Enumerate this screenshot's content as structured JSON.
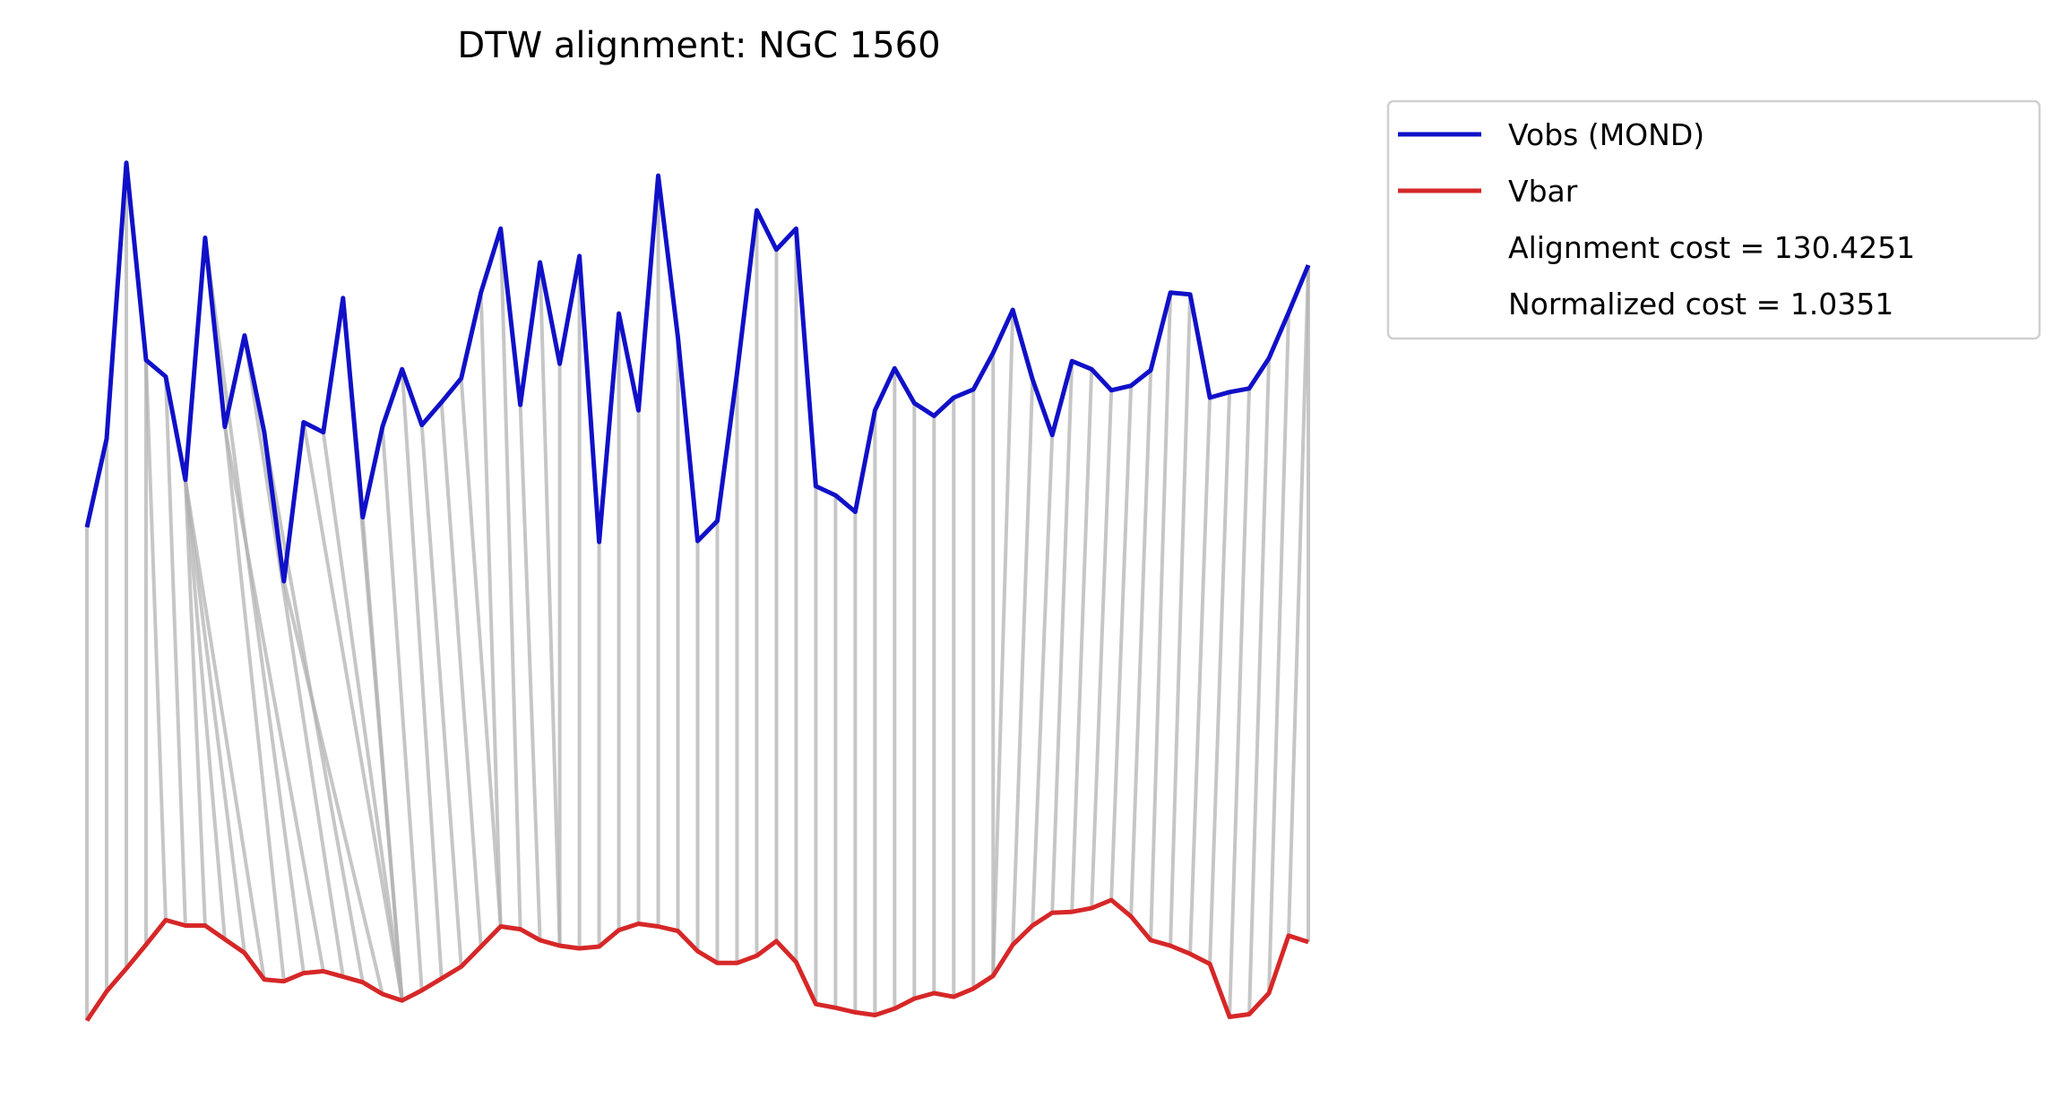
{
  "chart_data": {
    "type": "line",
    "title": "DTW alignment: NGC 1560",
    "xlabel": "",
    "ylabel": "",
    "axes_visible": false,
    "grid": false,
    "legend_position": "upper-right-outside",
    "x": [
      0,
      1,
      2,
      3,
      4,
      5,
      6,
      7,
      8,
      9,
      10,
      11,
      12,
      13,
      14,
      15,
      16,
      17,
      18,
      19,
      20,
      21,
      22,
      23,
      24,
      25,
      26,
      27,
      28,
      29,
      30,
      31,
      32,
      33,
      34,
      35,
      36,
      37,
      38,
      39,
      40,
      41,
      42,
      43,
      44,
      45,
      46,
      47,
      48,
      49,
      50,
      51,
      52,
      53,
      54,
      55,
      56,
      57,
      58,
      59,
      60,
      61,
      62
    ],
    "ylim": [
      0,
      1
    ],
    "series": [
      {
        "name": "Vobs (MOND)",
        "color": "#1010c8",
        "values": [
          0.56,
          0.657,
          0.959,
          0.743,
          0.725,
          0.612,
          0.877,
          0.67,
          0.77,
          0.664,
          0.501,
          0.675,
          0.664,
          0.811,
          0.571,
          0.67,
          0.733,
          0.672,
          0.697,
          0.723,
          0.817,
          0.887,
          0.694,
          0.85,
          0.739,
          0.857,
          0.544,
          0.794,
          0.688,
          0.945,
          0.768,
          0.545,
          0.567,
          0.729,
          0.907,
          0.864,
          0.887,
          0.605,
          0.595,
          0.577,
          0.688,
          0.734,
          0.696,
          0.682,
          0.702,
          0.711,
          0.751,
          0.798,
          0.722,
          0.661,
          0.742,
          0.733,
          0.71,
          0.715,
          0.732,
          0.817,
          0.815,
          0.702,
          0.708,
          0.712,
          0.745,
          0.795,
          0.847
        ]
      },
      {
        "name": "Vbar",
        "color": "#d62728",
        "values": [
          0.02,
          0.052,
          0.077,
          0.103,
          0.13,
          0.124,
          0.124,
          0.109,
          0.094,
          0.065,
          0.063,
          0.072,
          0.074,
          0.068,
          0.062,
          0.049,
          0.042,
          0.053,
          0.066,
          0.079,
          0.101,
          0.123,
          0.12,
          0.108,
          0.102,
          0.099,
          0.101,
          0.119,
          0.126,
          0.123,
          0.118,
          0.096,
          0.083,
          0.083,
          0.091,
          0.107,
          0.084,
          0.038,
          0.034,
          0.029,
          0.026,
          0.033,
          0.044,
          0.05,
          0.046,
          0.055,
          0.069,
          0.103,
          0.124,
          0.138,
          0.139,
          0.143,
          0.152,
          0.134,
          0.108,
          0.102,
          0.093,
          0.082,
          0.024,
          0.027,
          0.05,
          0.113,
          0.106
        ]
      }
    ],
    "alignment_path": [
      [
        0,
        0
      ],
      [
        1,
        1
      ],
      [
        2,
        2
      ],
      [
        3,
        3
      ],
      [
        3,
        4
      ],
      [
        4,
        5
      ],
      [
        5,
        6
      ],
      [
        5,
        7
      ],
      [
        5,
        8
      ],
      [
        5,
        9
      ],
      [
        6,
        10
      ],
      [
        6,
        11
      ],
      [
        7,
        12
      ],
      [
        8,
        13
      ],
      [
        9,
        14
      ],
      [
        10,
        15
      ],
      [
        11,
        16
      ],
      [
        12,
        16
      ],
      [
        13,
        16
      ],
      [
        14,
        16
      ],
      [
        15,
        17
      ],
      [
        16,
        18
      ],
      [
        17,
        19
      ],
      [
        18,
        20
      ],
      [
        19,
        21
      ],
      [
        20,
        21
      ],
      [
        21,
        22
      ],
      [
        22,
        23
      ],
      [
        23,
        24
      ],
      [
        24,
        24
      ],
      [
        25,
        25
      ],
      [
        26,
        26
      ],
      [
        27,
        27
      ],
      [
        28,
        28
      ],
      [
        29,
        29
      ],
      [
        30,
        30
      ],
      [
        31,
        31
      ],
      [
        32,
        32
      ],
      [
        33,
        33
      ],
      [
        34,
        34
      ],
      [
        35,
        35
      ],
      [
        36,
        36
      ],
      [
        37,
        37
      ],
      [
        38,
        38
      ],
      [
        39,
        39
      ],
      [
        40,
        40
      ],
      [
        41,
        41
      ],
      [
        42,
        42
      ],
      [
        43,
        43
      ],
      [
        44,
        44
      ],
      [
        45,
        45
      ],
      [
        46,
        46
      ],
      [
        47,
        46
      ],
      [
        48,
        47
      ],
      [
        49,
        48
      ],
      [
        50,
        49
      ],
      [
        51,
        50
      ],
      [
        52,
        51
      ],
      [
        53,
        52
      ],
      [
        54,
        53
      ],
      [
        55,
        54
      ],
      [
        56,
        55
      ],
      [
        57,
        56
      ],
      [
        58,
        57
      ],
      [
        59,
        58
      ],
      [
        60,
        59
      ],
      [
        61,
        60
      ],
      [
        62,
        61
      ],
      [
        62,
        62
      ]
    ],
    "connector_color": "#b0b0b0",
    "legend": {
      "entries": [
        {
          "label": "Vobs (MOND)",
          "color": "#1010c8",
          "kind": "line"
        },
        {
          "label": "Vbar",
          "color": "#d62728",
          "kind": "line"
        },
        {
          "label": "Alignment cost = 130.4251",
          "kind": "text"
        },
        {
          "label": "Normalized cost = 1.0351",
          "kind": "text"
        }
      ]
    }
  }
}
